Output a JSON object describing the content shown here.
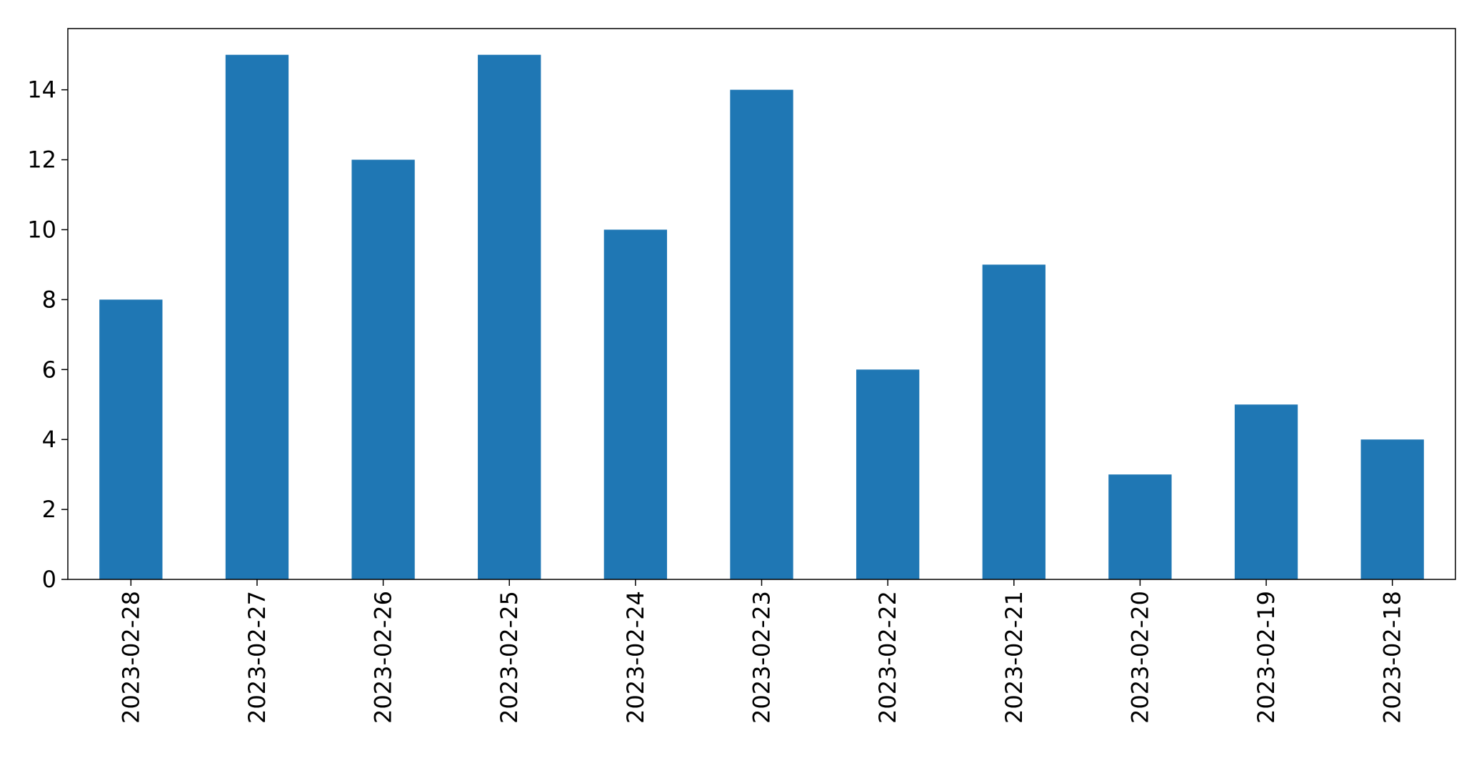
{
  "chart_data": {
    "type": "bar",
    "categories": [
      "2023-02-28",
      "2023-02-27",
      "2023-02-26",
      "2023-02-25",
      "2023-02-24",
      "2023-02-23",
      "2023-02-22",
      "2023-02-21",
      "2023-02-20",
      "2023-02-19",
      "2023-02-18"
    ],
    "values": [
      8,
      15,
      12,
      15,
      10,
      14,
      6,
      9,
      3,
      5,
      4
    ],
    "title": "",
    "xlabel": "",
    "ylabel": "",
    "ylim": [
      0,
      15.75
    ],
    "yticks": [
      0,
      2,
      4,
      6,
      8,
      10,
      12,
      14
    ],
    "grid": false,
    "legend": "none",
    "bar_color": "#1f77b4"
  }
}
